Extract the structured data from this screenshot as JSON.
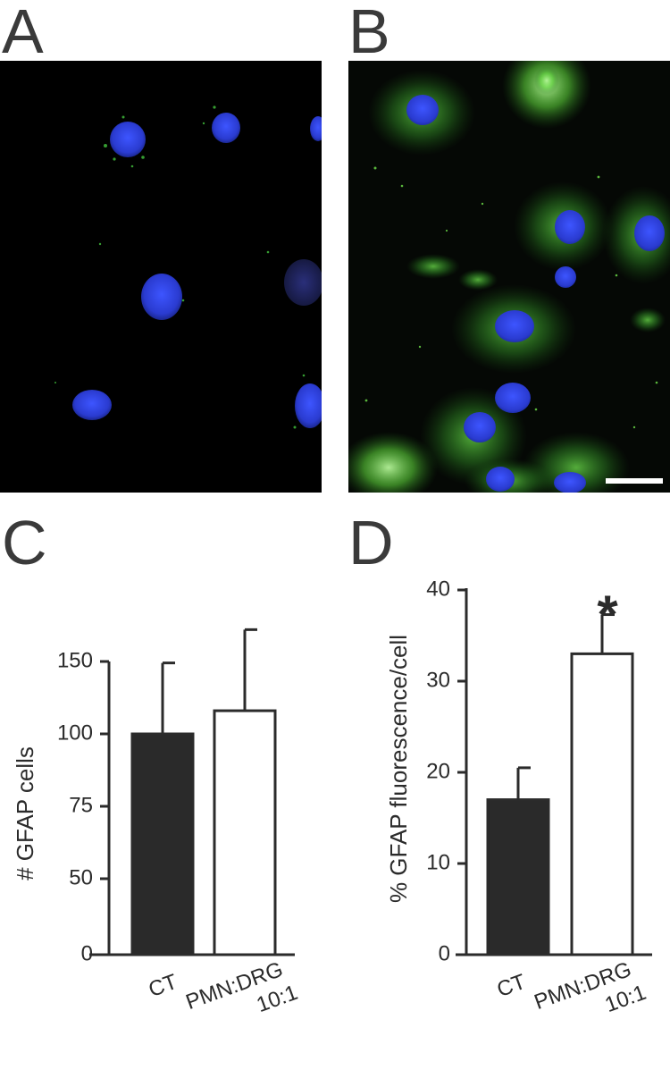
{
  "panels": {
    "a": "A",
    "b": "B",
    "c": "C",
    "d": "D"
  },
  "colors": {
    "nucleus": "#2a3fd6",
    "gfap": "#4fd23a",
    "bar_ct": "#2a2a2a",
    "bar_pmn": "#ffffff",
    "axis": "#2b2b2b"
  },
  "chart_data": [
    {
      "type": "bar",
      "panel": "C",
      "categories": [
        "CT",
        "PMN:DRG 10:1"
      ],
      "category_lines": [
        [
          "CT"
        ],
        [
          "PMN:DRG",
          "10:1"
        ]
      ],
      "values": [
        100,
        116
      ],
      "errors": [
        49,
        56
      ],
      "ylabel": "# GFAP cells",
      "ylim": [
        0,
        150
      ],
      "yticks": [
        0,
        50,
        75,
        100,
        150
      ],
      "bar_colors": [
        "#2a2a2a",
        "#ffffff"
      ],
      "annotations": []
    },
    {
      "type": "bar",
      "panel": "D",
      "categories": [
        "CT",
        "PMN:DRG 10:1"
      ],
      "category_lines": [
        [
          "CT"
        ],
        [
          "PMN:DRG",
          "10:1"
        ]
      ],
      "values": [
        17,
        33
      ],
      "errors": [
        3.5,
        4.3
      ],
      "ylabel": "% GFAP fluorescence/cell",
      "ylim": [
        0,
        40
      ],
      "yticks": [
        0,
        10,
        20,
        30,
        40
      ],
      "bar_colors": [
        "#2a2a2a",
        "#ffffff"
      ],
      "annotations": [
        "*"
      ]
    }
  ]
}
